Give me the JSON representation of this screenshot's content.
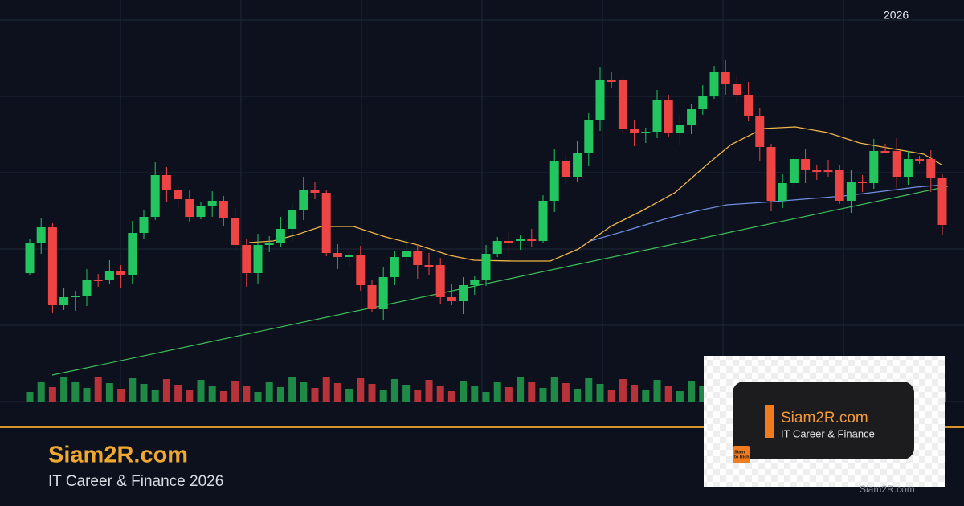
{
  "header": {
    "year": "2026"
  },
  "brand": {
    "title": "Siam2R.com",
    "subtitle": "IT Career & Finance 2026"
  },
  "logo_card": {
    "title": "Siam2R.com",
    "subtitle": "IT Career & Finance",
    "icon_text": [
      "Siam",
      "to Rich"
    ]
  },
  "watermark": "Siam2R.com"
}
